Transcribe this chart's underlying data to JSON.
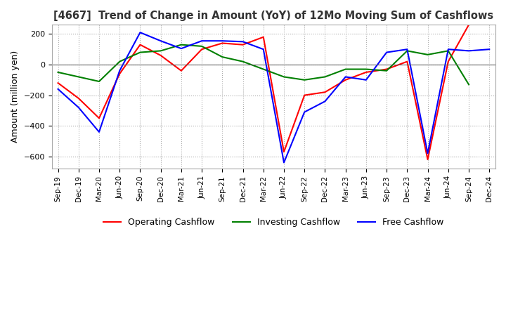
{
  "title": "[4667]  Trend of Change in Amount (YoY) of 12Mo Moving Sum of Cashflows",
  "ylabel": "Amount (million yen)",
  "x_labels": [
    "Sep-19",
    "Dec-19",
    "Mar-20",
    "Jun-20",
    "Sep-20",
    "Dec-20",
    "Mar-21",
    "Jun-21",
    "Sep-21",
    "Dec-21",
    "Mar-22",
    "Jun-22",
    "Sep-22",
    "Dec-22",
    "Mar-23",
    "Jun-23",
    "Sep-23",
    "Dec-23",
    "Mar-24",
    "Jun-24",
    "Sep-24",
    "Dec-24"
  ],
  "operating": [
    -120,
    -220,
    -350,
    -60,
    130,
    60,
    -40,
    100,
    140,
    130,
    180,
    -570,
    -200,
    -180,
    -100,
    -50,
    -30,
    20,
    -620,
    20,
    260,
    null
  ],
  "investing": [
    -50,
    -80,
    -110,
    20,
    80,
    90,
    130,
    120,
    50,
    20,
    -30,
    -80,
    -100,
    -80,
    -30,
    -30,
    -40,
    90,
    65,
    90,
    -130,
    null
  ],
  "free": [
    -160,
    -280,
    -440,
    -40,
    210,
    155,
    105,
    155,
    155,
    150,
    100,
    -640,
    -310,
    -240,
    -80,
    -100,
    80,
    100,
    -580,
    100,
    90,
    100
  ],
  "colors": {
    "operating": "#ff0000",
    "investing": "#008000",
    "free": "#0000ff"
  },
  "ylim": [
    -680,
    260
  ],
  "yticks": [
    200,
    0,
    -200,
    -400,
    -600
  ],
  "legend_labels": [
    "Operating Cashflow",
    "Investing Cashflow",
    "Free Cashflow"
  ],
  "background_color": "#ffffff",
  "grid_color": "#aaaaaa",
  "grid_style": "dotted"
}
